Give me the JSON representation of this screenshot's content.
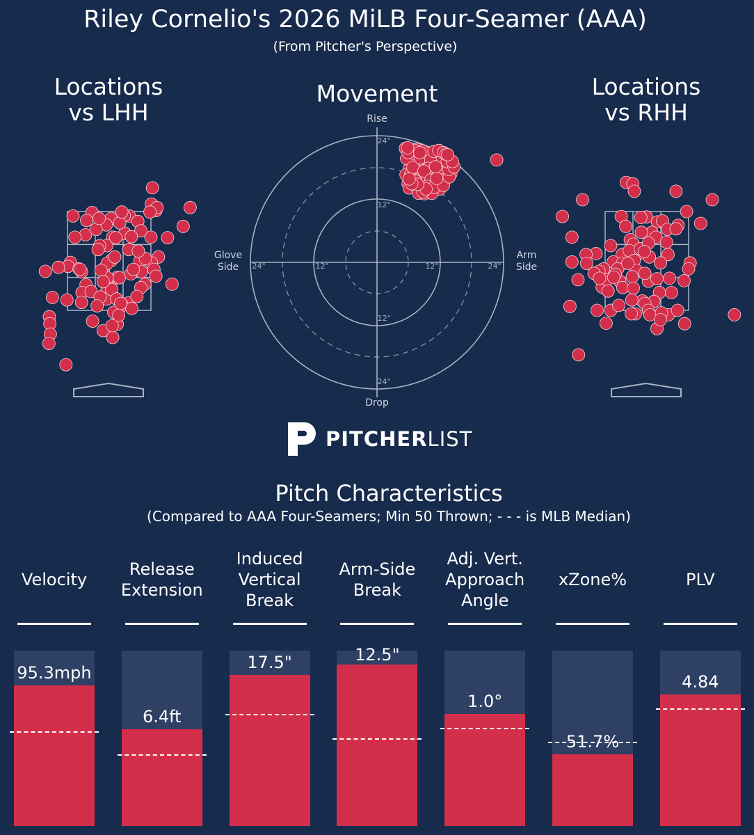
{
  "header": {
    "title": "Riley Cornelio's 2026 MiLB Four-Seamer (AAA)",
    "subtitle": "(From Pitcher's Perspective)"
  },
  "panels": {
    "lhh_title_1": "Locations",
    "lhh_title_2": "vs LHH",
    "movement_title": "Movement",
    "rhh_title_1": "Locations",
    "rhh_title_2": "vs RHH"
  },
  "movement_labels": {
    "rise": "Rise",
    "drop": "Drop",
    "glove_side_1": "Glove",
    "glove_side_2": "Side",
    "arm_side_1": "Arm",
    "arm_side_2": "Side",
    "ring_24": "24\"",
    "ring_12": "12\""
  },
  "logo": {
    "bold": "PITCHER",
    "light": "LIST"
  },
  "characteristics": {
    "title": "Pitch Characteristics",
    "subtitle": "(Compared to AAA Four-Seamers; Min 50 Thrown; - - - is MLB Median)"
  },
  "colors": {
    "background": "#172b4d",
    "pitch": "#d32e4a",
    "bar_bg": "#2e4063"
  },
  "chart_data": [
    {
      "type": "scatter",
      "name": "locations-vs-lhh",
      "title": "Locations vs LHH",
      "points": [
        [
          0.86,
          3.98
        ],
        [
          0.84,
          3.65
        ],
        [
          0.93,
          3.52
        ],
        [
          -0.34,
          3.48
        ],
        [
          0.95,
          3.58
        ],
        [
          1.47,
          3.2
        ],
        [
          0.4,
          3.41
        ],
        [
          0.04,
          3.36
        ],
        [
          0.81,
          3.49
        ],
        [
          -0.72,
          3.41
        ],
        [
          -0.45,
          3.32
        ],
        [
          -0.06,
          3.23
        ],
        [
          0.31,
          3.06
        ],
        [
          0.57,
          3.3
        ],
        [
          0.3,
          3.42
        ],
        [
          0.21,
          3.27
        ],
        [
          0.07,
          2.98
        ],
        [
          -0.47,
          3.03
        ],
        [
          0.83,
          2.98
        ],
        [
          0.63,
          3.11
        ],
        [
          -0.26,
          3.14
        ],
        [
          0.44,
          2.99
        ],
        [
          -0.05,
          2.81
        ],
        [
          0.39,
          2.73
        ],
        [
          1.16,
          2.97
        ],
        [
          0.61,
          2.5
        ],
        [
          0.98,
          2.58
        ],
        [
          -0.19,
          2.81
        ],
        [
          0.13,
          2.97
        ],
        [
          -0.2,
          3.36
        ],
        [
          0.84,
          2.46
        ],
        [
          -0.77,
          2.47
        ],
        [
          -0.82,
          2.39
        ],
        [
          -0.46,
          2.02
        ],
        [
          0.08,
          2.12
        ],
        [
          0.89,
          2.33
        ],
        [
          -1.01,
          2.37
        ],
        [
          0.72,
          2.55
        ],
        [
          -0.11,
          2.34
        ],
        [
          0.04,
          2.51
        ],
        [
          -0.22,
          2.73
        ],
        [
          -0.55,
          2.28
        ],
        [
          -0.04,
          2.45
        ],
        [
          0.64,
          2.28
        ],
        [
          0.16,
          2.17
        ],
        [
          0.93,
          2.19
        ],
        [
          -0.06,
          2.03
        ],
        [
          0.2,
          2.16
        ],
        [
          -0.04,
          2.16
        ],
        [
          0.71,
          2.03
        ],
        [
          0.38,
          1.65
        ],
        [
          -0.6,
          2.34
        ],
        [
          -1.13,
          1.76
        ],
        [
          -0.84,
          1.71
        ],
        [
          -0.54,
          1.86
        ],
        [
          1.25,
          2.03
        ],
        [
          -0.05,
          1.88
        ],
        [
          -1.27,
          2.29
        ],
        [
          0.26,
          1.6
        ],
        [
          -0.05,
          1.73
        ],
        [
          0.05,
          1.92
        ],
        [
          0.45,
          1.54
        ],
        [
          0.09,
          1.46
        ],
        [
          -0.16,
          2.31
        ],
        [
          -0.55,
          1.66
        ],
        [
          -0.12,
          2.08
        ],
        [
          -0.36,
          1.88
        ],
        [
          0.63,
          1.96
        ],
        [
          0.43,
          2.24
        ],
        [
          0.15,
          1.73
        ],
        [
          -0.18,
          1.77
        ],
        [
          -0.24,
          1.59
        ],
        [
          0.55,
          1.78
        ],
        [
          -0.33,
          1.28
        ],
        [
          0.11,
          2.58
        ],
        [
          -0.12,
          1.09
        ],
        [
          -1.19,
          1.37
        ],
        [
          0.16,
          1.22
        ],
        [
          0.23,
          1.64
        ],
        [
          -1.18,
          1.23
        ],
        [
          -1.17,
          1.02
        ],
        [
          -0.86,
          0.4
        ],
        [
          0.19,
          1.4
        ],
        [
          0.07,
          0.95
        ],
        [
          -1.2,
          0.83
        ],
        [
          0.06,
          1.19
        ],
        [
          0.48,
          2.33
        ],
        [
          -0.58,
          2.33
        ],
        [
          0.58,
          2.7
        ],
        [
          -0.68,
          2.98
        ],
        [
          0.25,
          3.49
        ],
        [
          1.61,
          3.58
        ]
      ],
      "strike_zone": {
        "x": [
          -0.83,
          0.83
        ],
        "z": [
          1.5,
          3.5
        ]
      }
    },
    {
      "type": "scatter",
      "name": "movement",
      "title": "Movement",
      "x_label": "Arm Side",
      "y_label": "Rise",
      "rings": [
        12,
        24
      ],
      "points": [
        [
          6.8,
          20.4
        ],
        [
          6.1,
          21.2
        ],
        [
          5.4,
          21.6
        ],
        [
          6.6,
          21.4
        ],
        [
          7.8,
          20.9
        ],
        [
          8.4,
          20.4
        ],
        [
          9.2,
          20.1
        ],
        [
          9.3,
          20.7
        ],
        [
          7.6,
          21.4
        ],
        [
          10.0,
          20.7
        ],
        [
          8.7,
          21.1
        ],
        [
          7.7,
          19.9
        ],
        [
          9.5,
          19.7
        ],
        [
          9.1,
          19.1
        ],
        [
          8.5,
          19.4
        ],
        [
          8.9,
          18.5
        ],
        [
          9.7,
          18.6
        ],
        [
          8.2,
          18.4
        ],
        [
          7.2,
          18.5
        ],
        [
          6.4,
          19.1
        ],
        [
          6.2,
          20.0
        ],
        [
          7.4,
          19.1
        ],
        [
          8.8,
          17.9
        ],
        [
          8.1,
          17.5
        ],
        [
          7.5,
          17.4
        ],
        [
          8.4,
          17.1
        ],
        [
          6.9,
          17.6
        ],
        [
          6.6,
          18.4
        ],
        [
          6.1,
          17.7
        ],
        [
          5.5,
          16.6
        ],
        [
          6.4,
          16.7
        ],
        [
          6.8,
          16.2
        ],
        [
          7.3,
          16.6
        ],
        [
          7.6,
          15.9
        ],
        [
          6.1,
          15.3
        ],
        [
          5.9,
          14.9
        ],
        [
          6.1,
          14.1
        ],
        [
          7.2,
          14.6
        ],
        [
          7.9,
          15.0
        ],
        [
          8.8,
          15.4
        ],
        [
          9.5,
          15.5
        ],
        [
          10.1,
          15.8
        ],
        [
          10.6,
          15.9
        ],
        [
          10.7,
          16.4
        ],
        [
          9.9,
          16.5
        ],
        [
          9.2,
          16.3
        ],
        [
          8.5,
          16.6
        ],
        [
          10.9,
          17.2
        ],
        [
          11.5,
          17.0
        ],
        [
          11.7,
          17.7
        ],
        [
          11.2,
          18.3
        ],
        [
          11.9,
          18.4
        ],
        [
          12.3,
          19.0
        ],
        [
          10.3,
          18.0
        ],
        [
          12.0,
          19.6
        ],
        [
          11.2,
          19.5
        ],
        [
          10.6,
          19.2
        ],
        [
          10.8,
          20.1
        ],
        [
          11.2,
          20.5
        ],
        [
          12.1,
          20.1
        ],
        [
          12.8,
          19.5
        ],
        [
          13.0,
          18.6
        ],
        [
          13.6,
          18.2
        ],
        [
          13.9,
          18.9
        ],
        [
          14.1,
          18.0
        ],
        [
          13.1,
          17.5
        ],
        [
          12.4,
          17.2
        ],
        [
          12.5,
          16.5
        ],
        [
          13.2,
          16.7
        ],
        [
          14.0,
          16.8
        ],
        [
          12.6,
          15.7
        ],
        [
          11.8,
          15.8
        ],
        [
          11.4,
          15.3
        ],
        [
          11.2,
          14.6
        ],
        [
          12.0,
          14.9
        ],
        [
          10.6,
          14.9
        ],
        [
          9.3,
          14.0
        ],
        [
          9.9,
          13.7
        ],
        [
          8.8,
          14.6
        ],
        [
          8.1,
          14.0
        ],
        [
          10.9,
          13.7
        ],
        [
          7.9,
          13.1
        ],
        [
          9.0,
          13.0
        ],
        [
          11.9,
          13.9
        ],
        [
          10.4,
          13.1
        ],
        [
          6.8,
          14.9
        ],
        [
          5.6,
          19.7
        ],
        [
          7.0,
          20.7
        ],
        [
          8.9,
          20.3
        ],
        [
          9.8,
          19.5
        ],
        [
          11.7,
          19.0
        ],
        [
          12.9,
          17.1
        ],
        [
          11.1,
          16.6
        ],
        [
          6.8,
          18.0
        ],
        [
          7.8,
          15.6
        ],
        [
          9.3,
          15.1
        ],
        [
          10.1,
          14.6
        ],
        [
          11.9,
          16.8
        ],
        [
          13.1,
          18.0
        ],
        [
          10.0,
          17.0
        ],
        [
          13.1,
          19.8
        ],
        [
          11.8,
          20.3
        ],
        [
          9.6,
          20.7
        ],
        [
          7.1,
          21.2
        ],
        [
          5.9,
          20.8
        ],
        [
          8.2,
          19.8
        ],
        [
          8.1,
          20.8
        ],
        [
          10.2,
          19.4
        ],
        [
          12.1,
          18.1
        ],
        [
          11.6,
          17.3
        ],
        [
          9.7,
          17.8
        ],
        [
          8.9,
          17.3
        ],
        [
          10.2,
          15.6
        ],
        [
          12.3,
          15.6
        ],
        [
          5.8,
          21.7
        ],
        [
          7.3,
          15.4
        ],
        [
          9.6,
          14.4
        ],
        [
          11.6,
          14.7
        ],
        [
          10.8,
          14.2
        ],
        [
          12.6,
          14.6
        ],
        [
          13.7,
          16.2
        ],
        [
          13.6,
          17.6
        ],
        [
          8.7,
          13.3
        ],
        [
          9.3,
          13.9
        ],
        [
          7.7,
          14.8
        ],
        [
          6.6,
          14.9
        ],
        [
          6.1,
          15.8
        ],
        [
          11.3,
          15.9
        ],
        [
          12.4,
          19.9
        ],
        [
          13.3,
          19.1
        ],
        [
          10.8,
          21.0
        ],
        [
          11.7,
          21.2
        ],
        [
          12.6,
          20.8
        ],
        [
          13.1,
          20.5
        ],
        [
          14.6,
          18.1
        ],
        [
          14.3,
          19.1
        ],
        [
          13.4,
          20.4
        ],
        [
          11.1,
          18.1
        ],
        [
          22.7,
          19.4
        ]
      ]
    },
    {
      "type": "scatter",
      "name": "locations-vs-rhh",
      "title": "Locations vs RHH",
      "points": [
        [
          -0.41,
          4.09
        ],
        [
          -0.28,
          4.06
        ],
        [
          -0.25,
          3.91
        ],
        [
          0.58,
          3.91
        ],
        [
          -1.28,
          3.74
        ],
        [
          -1.68,
          3.4
        ],
        [
          -0.51,
          3.4
        ],
        [
          -0.01,
          3.39
        ],
        [
          0.21,
          3.29
        ],
        [
          0.31,
          3.31
        ],
        [
          0.41,
          3.14
        ],
        [
          0.1,
          3.08
        ],
        [
          -0.42,
          3.2
        ],
        [
          -0.11,
          3.08
        ],
        [
          0.18,
          2.98
        ],
        [
          1.07,
          3.26
        ],
        [
          0.39,
          2.88
        ],
        [
          -0.33,
          2.93
        ],
        [
          -0.09,
          2.66
        ],
        [
          -0.49,
          2.63
        ],
        [
          -0.27,
          2.84
        ],
        [
          -0.35,
          2.71
        ],
        [
          -1.49,
          2.48
        ],
        [
          -1.01,
          2.65
        ],
        [
          -1.21,
          2.63
        ],
        [
          -1.49,
          2.98
        ],
        [
          -0.72,
          2.81
        ],
        [
          -0.13,
          2.75
        ],
        [
          0.03,
          2.86
        ],
        [
          0.42,
          2.63
        ],
        [
          -0.67,
          2.48
        ],
        [
          -0.49,
          2.45
        ],
        [
          -0.25,
          2.51
        ],
        [
          -0.58,
          2.34
        ],
        [
          -0.86,
          2.34
        ],
        [
          -0.21,
          2.31
        ],
        [
          -0.38,
          2.45
        ],
        [
          -0.95,
          2.29
        ],
        [
          -1.05,
          2.25
        ],
        [
          -1.37,
          2.12
        ],
        [
          -1.2,
          2.45
        ],
        [
          -0.89,
          1.97
        ],
        [
          -0.79,
          2.12
        ],
        [
          -0.54,
          2.09
        ],
        [
          0.05,
          2.58
        ],
        [
          0.03,
          2.09
        ],
        [
          -0.48,
          1.96
        ],
        [
          -0.77,
          1.89
        ],
        [
          -0.94,
          2.15
        ],
        [
          -0.09,
          1.69
        ],
        [
          0.2,
          2.14
        ],
        [
          0.25,
          1.86
        ],
        [
          0.49,
          1.86
        ],
        [
          0.86,
          2.46
        ],
        [
          0.43,
          1.41
        ],
        [
          0.14,
          1.68
        ],
        [
          -0.23,
          1.43
        ],
        [
          -0.04,
          1.64
        ],
        [
          0.03,
          1.5
        ],
        [
          0.06,
          1.41
        ],
        [
          0.29,
          1.45
        ],
        [
          -0.31,
          1.43
        ],
        [
          0.2,
          1.13
        ],
        [
          0.61,
          1.5
        ],
        [
          0.27,
          1.31
        ],
        [
          0.75,
          1.23
        ],
        [
          -0.99,
          1.5
        ],
        [
          -0.72,
          1.5
        ],
        [
          -0.56,
          1.6
        ],
        [
          -0.81,
          1.24
        ],
        [
          -1.53,
          1.58
        ],
        [
          -0.63,
          2.23
        ],
        [
          0.27,
          2.46
        ],
        [
          -0.29,
          2.18
        ],
        [
          -0.27,
          1.95
        ],
        [
          -0.3,
          1.71
        ],
        [
          0.45,
          2.15
        ],
        [
          0.74,
          2.1
        ],
        [
          -0.66,
          2.17
        ],
        [
          -0.04,
          2.25
        ],
        [
          -0.05,
          2.69
        ],
        [
          0.62,
          3.22
        ],
        [
          0.58,
          3.15
        ],
        [
          0.79,
          3.5
        ],
        [
          1.3,
          3.74
        ],
        [
          1.74,
          1.41
        ],
        [
          -1.36,
          0.6
        ],
        [
          0.83,
          2.34
        ],
        [
          -2.49,
          1.17
        ],
        [
          -0.12,
          3.38
        ]
      ],
      "strike_zone": {
        "x": [
          -0.83,
          0.83
        ],
        "z": [
          1.5,
          3.5
        ]
      }
    },
    {
      "type": "bar",
      "name": "pitch-characteristics",
      "title": "Pitch Characteristics",
      "categories": [
        "Velocity",
        "Release Extension",
        "Induced Vertical Break",
        "Arm-Side Break",
        "Adj. Vert. Approach Angle",
        "xZone%",
        "PLV"
      ],
      "label_lines": [
        [
          "Velocity"
        ],
        [
          "Release",
          "Extension"
        ],
        [
          "Induced",
          "Vertical",
          "Break"
        ],
        [
          "Arm-Side",
          "Break"
        ],
        [
          "Adj. Vert.",
          "Approach",
          "Angle"
        ],
        [
          "xZone%"
        ],
        [
          "PLV"
        ]
      ],
      "value_labels": [
        "95.3mph",
        "6.4ft",
        "17.5\"",
        "12.5\"",
        "1.0°",
        "51.7%",
        "4.84"
      ],
      "percentiles": [
        80,
        55,
        86,
        92,
        64,
        41,
        75
      ],
      "mlb_median_percentiles": [
        54,
        41,
        64,
        50,
        56,
        48,
        67
      ],
      "ylim": [
        0,
        100
      ]
    }
  ]
}
